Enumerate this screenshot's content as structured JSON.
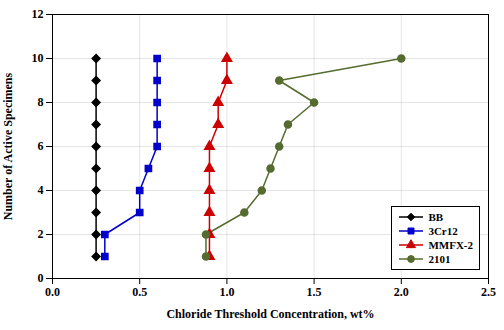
{
  "chart_data": {
    "type": "line",
    "xlabel": "Chloride Threshold Concentration, wt%",
    "ylabel": "Number of Active Specimens",
    "series": [
      {
        "name": "BB",
        "color": "#000000",
        "marker": "diamond",
        "x": [
          0.25,
          0.25,
          0.25,
          0.25,
          0.25,
          0.25,
          0.25,
          0.25,
          0.25,
          0.25
        ],
        "values": [
          1,
          2,
          3,
          4,
          5,
          6,
          7,
          8,
          9,
          10
        ]
      },
      {
        "name": "3Cr12",
        "color": "#0000cc",
        "marker": "square",
        "x": [
          0.3,
          0.3,
          0.5,
          0.5,
          0.55,
          0.6,
          0.6,
          0.6,
          0.6,
          0.6
        ],
        "values": [
          1,
          2,
          3,
          4,
          5,
          6,
          7,
          8,
          9,
          10
        ]
      },
      {
        "name": "MMFX-2",
        "color": "#cc0000",
        "marker": "triangle",
        "x": [
          0.9,
          0.9,
          0.9,
          0.9,
          0.9,
          0.9,
          0.95,
          0.95,
          1.0,
          1.0
        ],
        "values": [
          1,
          2,
          3,
          4,
          5,
          6,
          7,
          8,
          9,
          10
        ]
      },
      {
        "name": "2101",
        "color": "#556b2f",
        "marker": "circle",
        "x": [
          0.88,
          0.88,
          1.1,
          1.2,
          1.25,
          1.3,
          1.35,
          1.5,
          1.3,
          2.0
        ],
        "values": [
          1,
          2,
          3,
          4,
          5,
          6,
          7,
          8,
          9,
          10
        ]
      }
    ],
    "xlim": [
      0.0,
      2.5
    ],
    "ylim": [
      0,
      12
    ],
    "xticks": [
      {
        "value": 0,
        "label": "0.0"
      },
      0.5,
      {
        "value": 1,
        "label": "1.0"
      },
      1.5,
      {
        "value": 2,
        "label": "2.0"
      },
      2.5
    ],
    "yticks": [
      0,
      2,
      4,
      6,
      8,
      10,
      12
    ],
    "grid": true,
    "legend": "lower right"
  }
}
